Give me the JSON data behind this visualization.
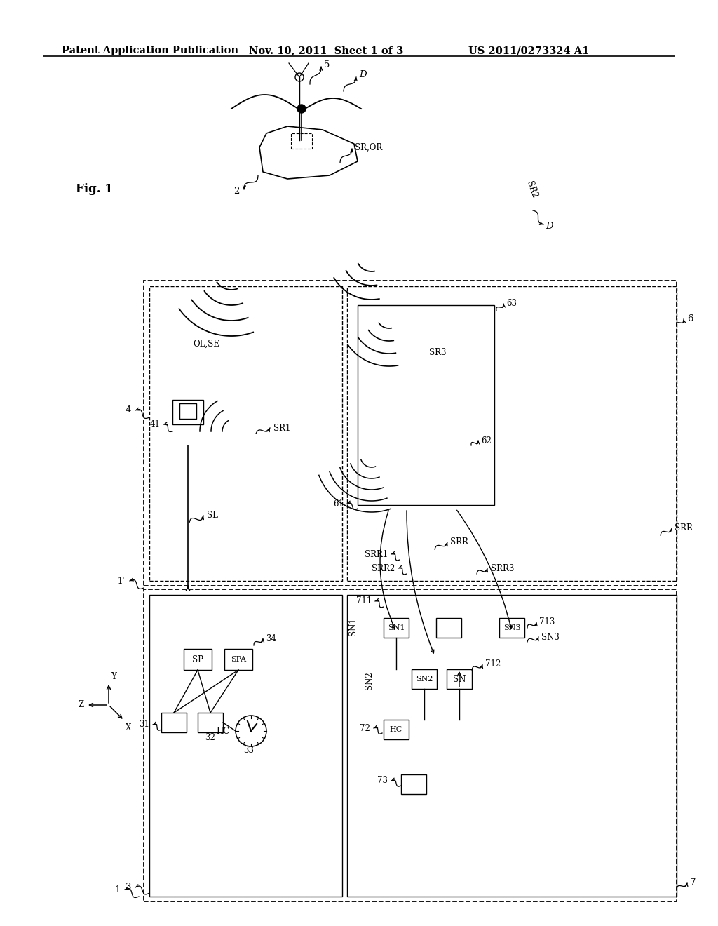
{
  "background_color": "#ffffff",
  "header_left": "Patent Application Publication",
  "header_mid": "Nov. 10, 2011  Sheet 1 of 3",
  "header_right": "US 2011/0273324 A1"
}
